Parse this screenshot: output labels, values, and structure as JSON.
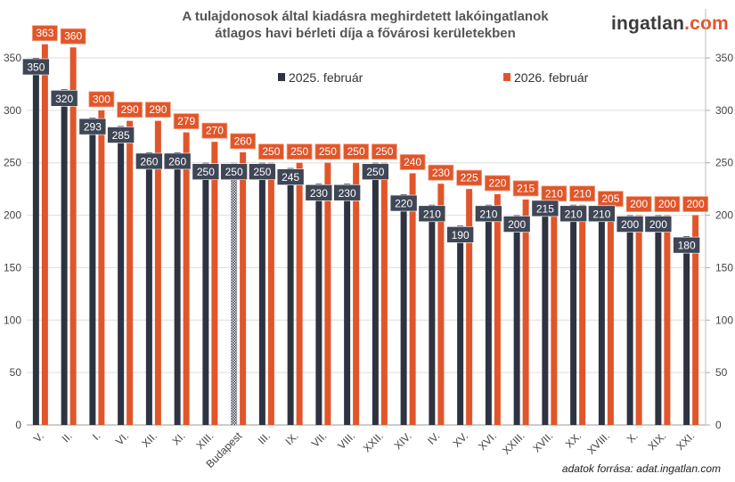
{
  "logo": {
    "main": "ingatlan",
    "suffix": ".com"
  },
  "source": "adatok forrása: adat.ingatlan.com",
  "colors": {
    "series2025": "#2e3341",
    "series2026": "#e0562a",
    "label2025": "#3f4656",
    "grid": "#dddddd"
  },
  "chart_data": {
    "type": "bar",
    "title": "A tulajdonosok által kiadásra meghirdetett lakóingatlanok átlagos havi bérleti díja a fővárosi kerületekben",
    "title_lines": [
      "A tulajdonosok által kiadásra meghirdetett lakóingatlanok",
      "átlagos havi bérleti díja a fővárosi kerületekben"
    ],
    "categories": [
      "V.",
      "II.",
      "I.",
      "VI.",
      "XII.",
      "XI.",
      "XIII.",
      "Budapest",
      "III.",
      "IX.",
      "VII.",
      "VIII.",
      "XXII.",
      "XIV.",
      "IV.",
      "XV.",
      "XVI.",
      "XXIII.",
      "XVII.",
      "XX.",
      "XVIII.",
      "X.",
      "XIX.",
      "XXI."
    ],
    "series": [
      {
        "name": "2025. február",
        "values": [
          350,
          320,
          293,
          285,
          260,
          260,
          250,
          250,
          250,
          245,
          230,
          230,
          250,
          220,
          210,
          190,
          210,
          200,
          215,
          210,
          210,
          200,
          200,
          180
        ]
      },
      {
        "name": "2026. február",
        "values": [
          363,
          360,
          300,
          290,
          290,
          279,
          270,
          260,
          250,
          250,
          250,
          250,
          250,
          240,
          230,
          225,
          220,
          215,
          210,
          210,
          205,
          200,
          200,
          200
        ]
      }
    ],
    "highlight_category": "Budapest",
    "yticks": [
      0,
      50,
      100,
      150,
      200,
      250,
      300,
      350
    ],
    "ylim": [
      0,
      350
    ],
    "secondary_axis": true,
    "grid": true,
    "legend": "top-center",
    "data_labels": true
  }
}
